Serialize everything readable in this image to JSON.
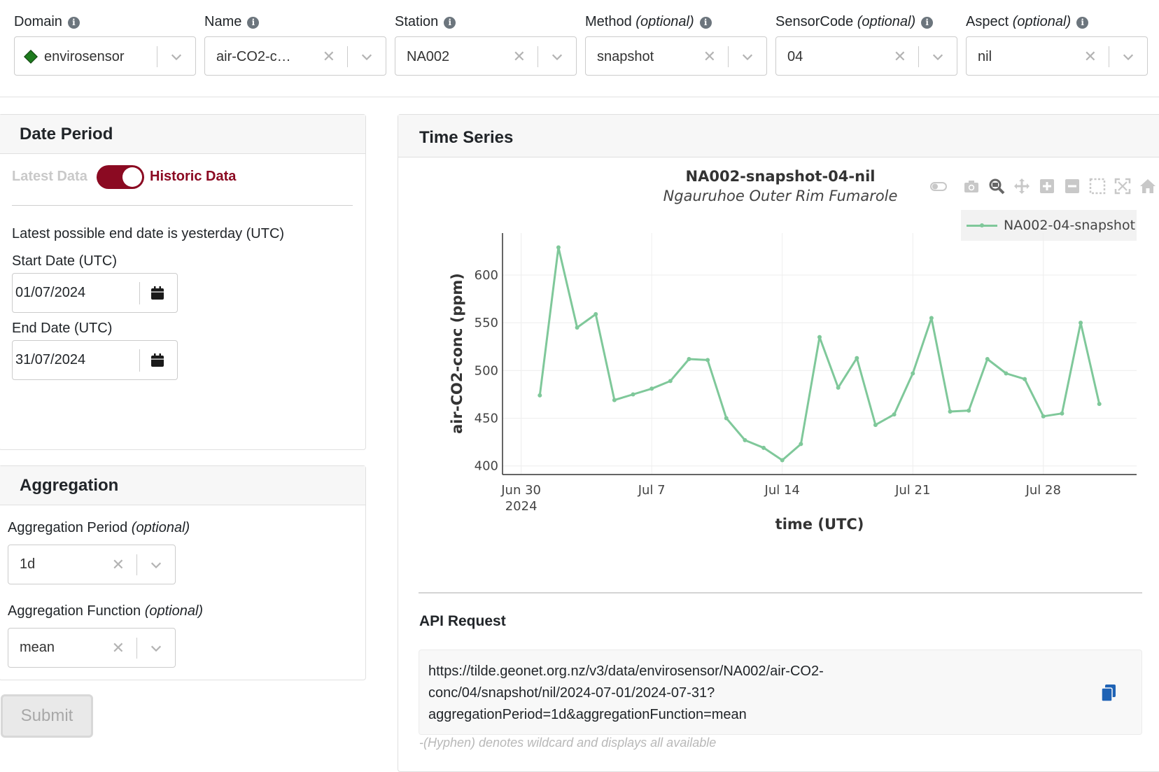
{
  "filters": [
    {
      "label": "Domain",
      "optional": "",
      "value": "envirosensor",
      "clearable": false
    },
    {
      "label": "Name",
      "optional": "",
      "value": "air-CO2-c…",
      "clearable": true
    },
    {
      "label": "Station",
      "optional": "",
      "value": "NA002",
      "clearable": true
    },
    {
      "label": "Method",
      "optional": "(optional)",
      "value": "snapshot",
      "clearable": true
    },
    {
      "label": "SensorCode",
      "optional": "(optional)",
      "value": "04",
      "clearable": true
    },
    {
      "label": "Aspect",
      "optional": "(optional)",
      "value": "nil",
      "clearable": true
    }
  ],
  "date_period": {
    "title": "Date Period",
    "toggle_off_label": "Latest Data",
    "toggle_on_label": "Historic Data",
    "toggle_on": true,
    "note": "Latest possible end date is yesterday (UTC)",
    "start_label": "Start Date (UTC)",
    "start_value": "01/07/2024",
    "end_label": "End Date (UTC)",
    "end_value": "31/07/2024"
  },
  "aggregation": {
    "title": "Aggregation",
    "period_label": "Aggregation Period",
    "period_optional": "(optional)",
    "period_value": "1d",
    "function_label": "Aggregation Function",
    "function_optional": "(optional)",
    "function_value": "mean"
  },
  "submit_label": "Submit",
  "time_series": {
    "title": "Time Series",
    "plot_title": "NA002-snapshot-04-nil",
    "plot_subtitle": "Ngauruhoe Outer Rim Fumarole"
  },
  "modebar": [
    "toggle-icon",
    "camera-icon",
    "zoom-icon",
    "pan-icon",
    "zoom-in-icon",
    "zoom-out-icon",
    "box-select-icon",
    "autoscale-icon",
    "home-icon"
  ],
  "chart_data": {
    "type": "line",
    "xlabel": "time (UTC)",
    "ylabel": "air-CO2-conc (ppm)",
    "x_ticks": [
      "Jun 30",
      "Jul 7",
      "Jul 14",
      "Jul 21",
      "Jul 28"
    ],
    "x_tick_sublabel": "2024",
    "y_ticks": [
      400,
      450,
      500,
      550,
      600
    ],
    "ylim": [
      391,
      644
    ],
    "xlim": [
      "2024-06-29",
      "2024-08-02"
    ],
    "grid": true,
    "legend_position": "top-right",
    "color": "#7fc89a",
    "series": [
      {
        "name": "NA002-04-snapshot",
        "x": [
          "2024-07-01",
          "2024-07-02",
          "2024-07-03",
          "2024-07-04",
          "2024-07-05",
          "2024-07-06",
          "2024-07-07",
          "2024-07-08",
          "2024-07-09",
          "2024-07-10",
          "2024-07-11",
          "2024-07-12",
          "2024-07-13",
          "2024-07-14",
          "2024-07-15",
          "2024-07-16",
          "2024-07-17",
          "2024-07-18",
          "2024-07-19",
          "2024-07-20",
          "2024-07-21",
          "2024-07-22",
          "2024-07-23",
          "2024-07-24",
          "2024-07-25",
          "2024-07-26",
          "2024-07-27",
          "2024-07-28",
          "2024-07-29",
          "2024-07-30",
          "2024-07-31"
        ],
        "y": [
          474,
          629,
          545,
          559,
          469,
          475,
          481,
          489,
          512,
          511,
          450,
          427,
          419,
          406,
          423,
          535,
          482,
          513,
          443,
          454,
          497,
          555,
          457,
          458,
          512,
          497,
          491,
          452,
          455,
          550,
          465
        ]
      }
    ]
  },
  "api": {
    "title": "API Request",
    "lines": [
      "https://tilde.geonet.org.nz/v3/data/envirosensor/NA002/air-CO2-",
      "conc/04/snapshot/nil/2024-07-01/2024-07-31?",
      "aggregationPeriod=1d&aggregationFunction=mean"
    ],
    "note": "-(Hyphen) denotes wildcard and displays all available"
  }
}
